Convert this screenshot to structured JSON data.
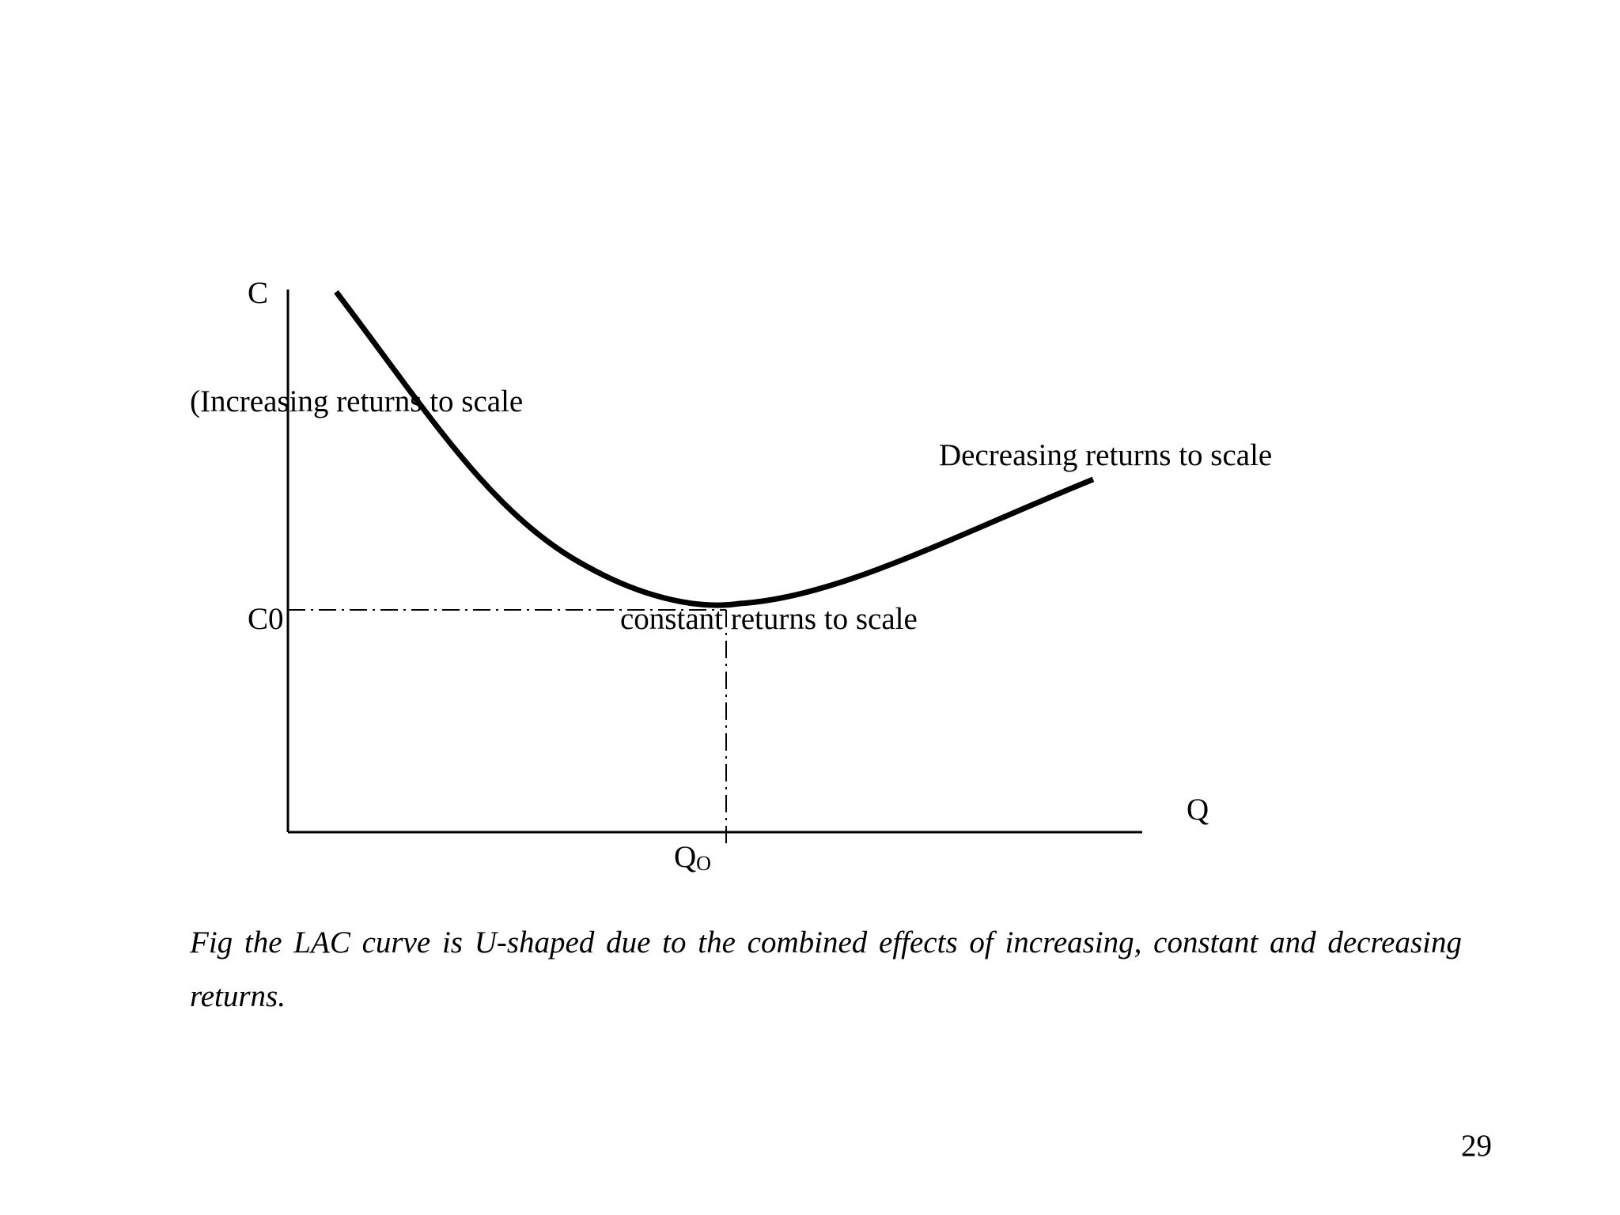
{
  "diagram": {
    "y_axis_label": "C",
    "x_axis_label": "Q",
    "c0_label": "C0",
    "q0_label": "Q",
    "q0_subscript": "O",
    "increasing_label": "(Increasing returns to scale",
    "decreasing_label": "Decreasing returns to scale",
    "constant_label": "constant returns to scale",
    "line_color": "#000000"
  },
  "caption": "Fig the LAC curve is U-shaped due to the combined effects of increasing, constant and decreasing returns.",
  "page_number": "29"
}
